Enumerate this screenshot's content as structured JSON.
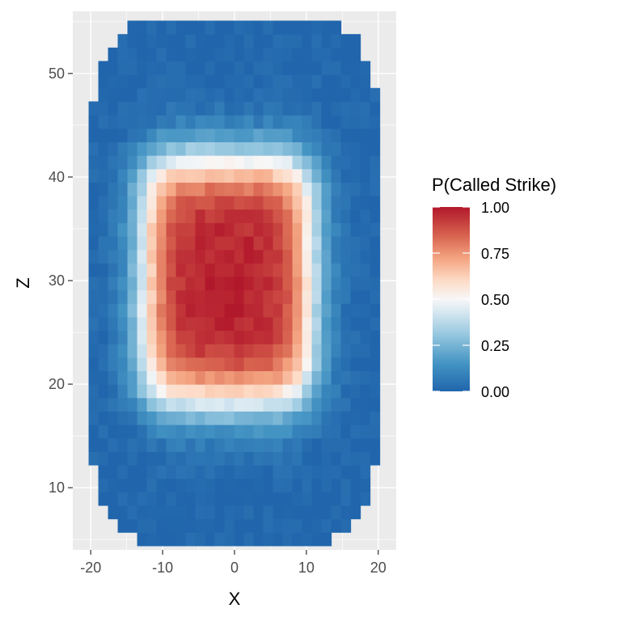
{
  "chart_data": {
    "type": "heatmap",
    "title": "",
    "xlabel": "X",
    "ylabel": "Z",
    "xlim": [
      -22.5,
      22.5
    ],
    "ylim": [
      4,
      56
    ],
    "x_ticks": [
      -20,
      -10,
      0,
      10,
      20
    ],
    "x_tick_labels": [
      "-20",
      "-10",
      "0",
      "10",
      "20"
    ],
    "y_ticks": [
      10,
      20,
      30,
      40,
      50
    ],
    "y_tick_labels": [
      "10",
      "20",
      "30",
      "40",
      "50"
    ],
    "grid": true,
    "panel_background": "#EBEBEB",
    "cell_size": {
      "x": 1.35,
      "z": 1.3
    },
    "coverage": {
      "x_center": 0,
      "z_center": 30,
      "superellipse_exponent": 5,
      "half_width": 20.3,
      "half_height": 25.6
    },
    "strike_zone_model": {
      "x_center": -1,
      "z_center": 30,
      "half_width": 11.5,
      "half_height": 11.5,
      "softness_x": 1.6,
      "softness_z": 1.7,
      "peak_probability": 0.98
    },
    "legend": {
      "title": "P(Called Strike)",
      "placement": "right",
      "breaks": [
        1.0,
        0.75,
        0.5,
        0.25,
        0.0
      ],
      "labels": [
        "1.00",
        "0.75",
        "0.50",
        "0.25",
        "0.00"
      ],
      "range": [
        0,
        1
      ]
    },
    "color_scale": {
      "name": "RdBu diverging",
      "stops": [
        {
          "value": 0.0,
          "color": "#2166AC"
        },
        {
          "value": 0.15,
          "color": "#4393C3"
        },
        {
          "value": 0.3,
          "color": "#92C5DE"
        },
        {
          "value": 0.42,
          "color": "#D1E5F0"
        },
        {
          "value": 0.5,
          "color": "#F7F7F7"
        },
        {
          "value": 0.6,
          "color": "#FDDBC7"
        },
        {
          "value": 0.72,
          "color": "#F4A582"
        },
        {
          "value": 0.85,
          "color": "#D6604D"
        },
        {
          "value": 1.0,
          "color": "#B2182B"
        }
      ]
    }
  }
}
